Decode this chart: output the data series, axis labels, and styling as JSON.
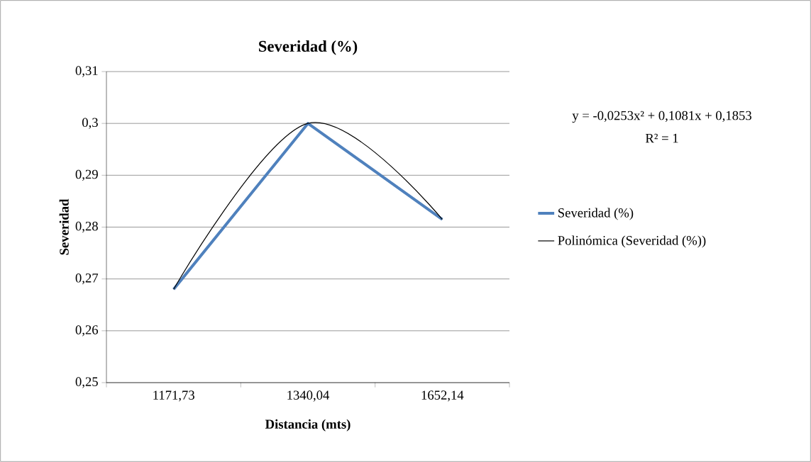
{
  "chart_data": {
    "type": "line",
    "title": "Severidad (%)",
    "xlabel": "Distancia (mts)",
    "ylabel": "Severidad",
    "categories": [
      "1171,73",
      "1340,04",
      "1652,14"
    ],
    "series": [
      {
        "name": "Severidad (%)",
        "color": "#4f81bd",
        "values": [
          0.268,
          0.3,
          0.2815
        ]
      },
      {
        "name": "Polinómica (Severidad (%))",
        "color": "#000000",
        "values": [
          0.268,
          0.3,
          0.2815
        ]
      }
    ],
    "ylim": [
      0.25,
      0.31
    ],
    "yticks": [
      {
        "value": 0.25,
        "label": "0,25"
      },
      {
        "value": 0.26,
        "label": "0,26"
      },
      {
        "value": 0.27,
        "label": "0,27"
      },
      {
        "value": 0.28,
        "label": "0,28"
      },
      {
        "value": 0.29,
        "label": "0,29"
      },
      {
        "value": 0.3,
        "label": "0,3"
      },
      {
        "value": 0.31,
        "label": "0,31"
      }
    ],
    "grid": "y",
    "legend": "right",
    "annotations": [
      "y = -0,0253x² + 0,1081x + 0,1853",
      "R² = 1"
    ]
  }
}
